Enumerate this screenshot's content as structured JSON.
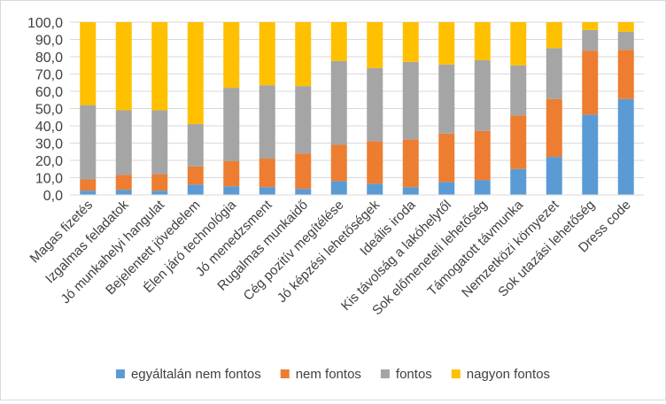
{
  "chart_data": {
    "type": "bar",
    "stacked": true,
    "percent_stacked": true,
    "ylim": [
      0,
      100
    ],
    "yticks": [
      "0,0",
      "10,0",
      "20,0",
      "30,0",
      "40,0",
      "50,0",
      "60,0",
      "70,0",
      "80,0",
      "90,0",
      "100,0"
    ],
    "grid": true,
    "legend_position": "bottom",
    "categories": [
      "Magas fizetés",
      "Izgalmas feladatok",
      "Jó munkahelyi hangulat",
      "Bejelentett jövedelem",
      "Élen járó technológia",
      "Jó menedzsment",
      "Rugalmas munkaidő",
      "Cég pozitív megítélése",
      "Jó képzési lehetőségek",
      "Ideális iroda",
      "Kis távolság a lakóhelytől",
      "Sok előmeneteli lehetőség",
      "Támogatott távmunka",
      "Nemzetközi környezet",
      "Sok utazási lehetőség",
      "Dress code"
    ],
    "series": [
      {
        "name": "egyáltalán nem fontos",
        "color": "#5B9BD5",
        "values": [
          2.5,
          3,
          2.5,
          6,
          5,
          4.5,
          3.5,
          8,
          6.5,
          4.5,
          7.5,
          8.5,
          15,
          22,
          46.5,
          55.5
        ]
      },
      {
        "name": "nem fontos",
        "color": "#ED7D31",
        "values": [
          6.5,
          8.5,
          9.5,
          10.5,
          14.5,
          16.5,
          20.5,
          21,
          24.5,
          27.5,
          28,
          28.5,
          31,
          33.5,
          37,
          28.5
        ]
      },
      {
        "name": "fontos",
        "color": "#A5A5A5",
        "values": [
          43,
          37.5,
          37,
          24.5,
          42.5,
          42.5,
          39,
          48.5,
          42.5,
          45,
          40,
          41,
          29,
          29.5,
          12,
          10.5
        ]
      },
      {
        "name": "nagyon fontos",
        "color": "#FFC000",
        "values": [
          48,
          51,
          51,
          59,
          38,
          36.5,
          37,
          22.5,
          26.5,
          23,
          24.5,
          22,
          25,
          15,
          4.5,
          5.5
        ]
      }
    ]
  }
}
